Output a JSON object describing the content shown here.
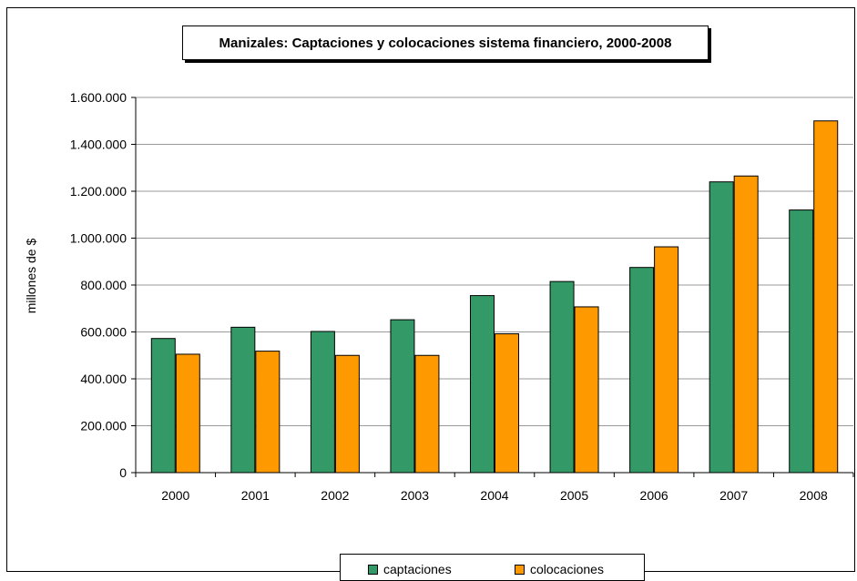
{
  "chart_data": {
    "type": "bar",
    "title": "Manizales: Captaciones y colocaciones sistema financiero, 2000-2008",
    "xlabel": "",
    "ylabel": "millones de $",
    "categories": [
      "2000",
      "2001",
      "2002",
      "2003",
      "2004",
      "2005",
      "2006",
      "2007",
      "2008"
    ],
    "series": [
      {
        "name": "captaciones",
        "color": "#339966",
        "values": [
          572000,
          620000,
          602000,
          652000,
          755000,
          815000,
          875000,
          1240000,
          1120000
        ]
      },
      {
        "name": "colocaciones",
        "color": "#FF9900",
        "values": [
          505000,
          518000,
          500000,
          500000,
          592000,
          707000,
          963000,
          1265000,
          1500000
        ]
      }
    ],
    "ylim": [
      0,
      1600000
    ],
    "yticks": [
      0,
      200000,
      400000,
      600000,
      800000,
      1000000,
      1200000,
      1400000,
      1600000
    ],
    "ytick_labels": [
      "0",
      "200.000",
      "400.000",
      "600.000",
      "800.000",
      "1.000.000",
      "1.200.000",
      "1.400.000",
      "1.600.000"
    ],
    "grid": true,
    "legend_position": "bottom"
  }
}
